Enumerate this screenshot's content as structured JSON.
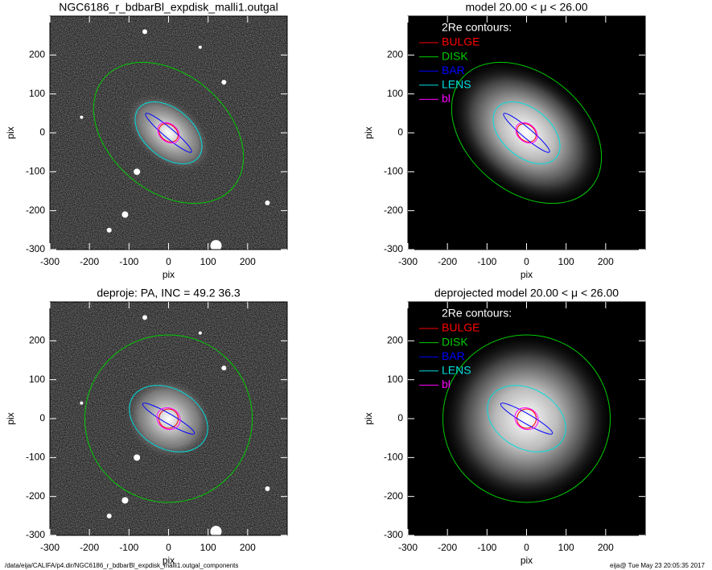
{
  "chart_data": [
    {
      "type": "image",
      "title": "NGC6186_r_bdbarBl_expdisk_malli1.outgal",
      "xlabel": "pix",
      "ylabel": "pix",
      "xlim": [
        -300,
        300
      ],
      "ylim": [
        -300,
        300
      ],
      "xticks": [
        -300,
        -200,
        -100,
        0,
        100,
        200
      ],
      "yticks": [
        -300,
        -200,
        -100,
        0,
        100,
        200
      ]
    },
    {
      "type": "model",
      "title": "model  20.00 < μ <  26.00",
      "xlabel": "pix",
      "ylabel": "pix",
      "xlim": [
        -300,
        300
      ],
      "ylim": [
        -300,
        300
      ],
      "xticks": [
        -300,
        -200,
        -100,
        0,
        100,
        200
      ],
      "yticks": [
        -300,
        -200,
        -100,
        0,
        100,
        200
      ],
      "legend_title": "2Re contours:",
      "series": [
        {
          "name": "BULGE",
          "color": "#ff0000"
        },
        {
          "name": "DISK",
          "color": "#00cc00"
        },
        {
          "name": "BAR",
          "color": "#0000ff"
        },
        {
          "name": "LENS",
          "color": "#00dddd"
        },
        {
          "name": "bl",
          "color": "#ff00ff"
        }
      ]
    },
    {
      "type": "image",
      "title": "deproje: PA, INC =  49.2    36.3",
      "xlabel": "pix",
      "ylabel": "pix",
      "xlim": [
        -300,
        300
      ],
      "ylim": [
        -300,
        300
      ],
      "xticks": [
        -300,
        -200,
        -100,
        0,
        100,
        200
      ],
      "yticks": [
        -300,
        -200,
        -100,
        0,
        100,
        200
      ]
    },
    {
      "type": "model",
      "title": "deprojected model  20.00 < μ <  26.00",
      "xlabel": "pix",
      "ylabel": "pix",
      "xlim": [
        -300,
        300
      ],
      "ylim": [
        -300,
        300
      ],
      "xticks": [
        -300,
        -200,
        -100,
        0,
        100,
        200
      ],
      "yticks": [
        -300,
        -200,
        -100,
        0,
        100,
        200
      ],
      "legend_title": "2Re contours:",
      "series": [
        {
          "name": "BULGE",
          "color": "#ff0000"
        },
        {
          "name": "DISK",
          "color": "#00cc00"
        },
        {
          "name": "BAR",
          "color": "#0000ff"
        },
        {
          "name": "LENS",
          "color": "#00dddd"
        },
        {
          "name": "bl",
          "color": "#ff00ff"
        }
      ]
    }
  ],
  "footer": {
    "path": "/data/eija/CALIFA/p4.dir/NGC6186_r_bdbarBl_expdisk_malli1.outgal_components",
    "stamp": "eija@  Tue May 23 20:05:35 2017"
  }
}
